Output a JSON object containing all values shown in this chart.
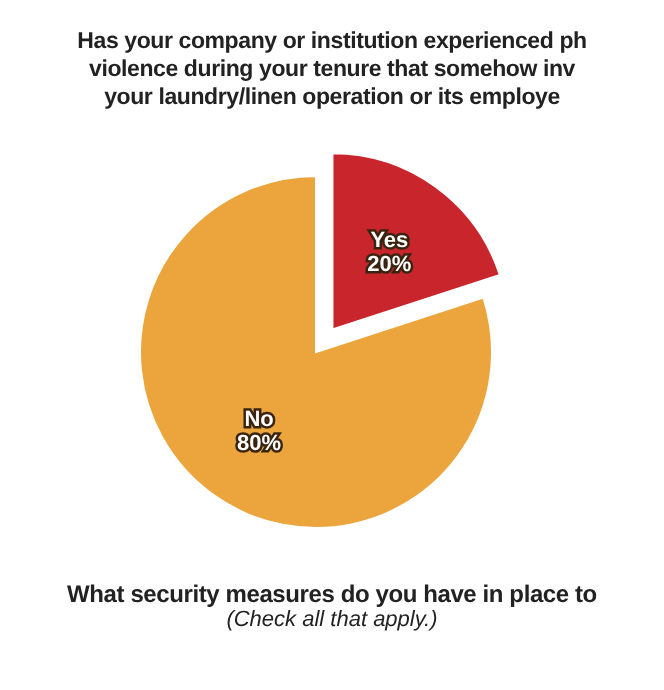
{
  "chart_data": {
    "type": "pie",
    "title": "Has your company or institution experienced ph\nviolence during your tenure that somehow inv\nyour laundry/linen operation or its employe",
    "categories": [
      "Yes",
      "No"
    ],
    "values": [
      20,
      80
    ],
    "colors": [
      "#c8262c",
      "#eba53c"
    ],
    "value_labels": [
      "20%",
      "80%"
    ],
    "annotations": [
      "What security measures do you have in place to",
      "(Check all that apply.)"
    ]
  }
}
